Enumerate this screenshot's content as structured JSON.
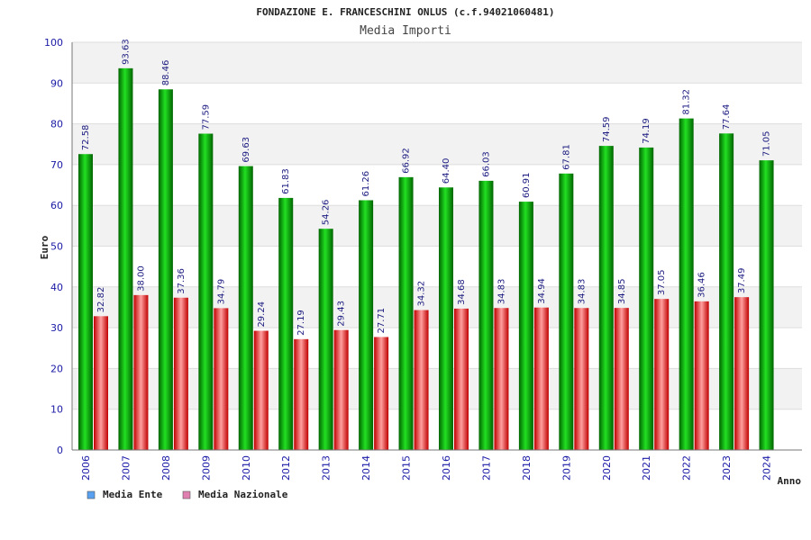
{
  "chart_data": {
    "type": "bar",
    "title": "FONDAZIONE E. FRANCESCHINI ONLUS (c.f.94021060481)",
    "subtitle": "Media Importi",
    "xlabel": "Anno",
    "ylabel": "Euro",
    "ylim": [
      0,
      100
    ],
    "yticks": [
      0,
      10,
      20,
      30,
      40,
      50,
      60,
      70,
      80,
      90,
      100
    ],
    "grid": true,
    "legend_position": "bottom-left",
    "categories": [
      "2006",
      "2007",
      "2008",
      "2009",
      "2010",
      "2012",
      "2013",
      "2014",
      "2015",
      "2016",
      "2017",
      "2018",
      "2019",
      "2020",
      "2021",
      "2022",
      "2023",
      "2024"
    ],
    "series": [
      {
        "name": "Media Ente",
        "color": "#00b400",
        "legend_color": "#5aa0f0",
        "values": [
          72.58,
          93.63,
          88.46,
          77.59,
          69.63,
          61.83,
          54.26,
          61.26,
          66.92,
          64.4,
          66.03,
          60.91,
          67.81,
          74.59,
          74.19,
          81.32,
          77.64,
          71.05
        ],
        "labels": [
          "72.58",
          "93.63",
          "88.46",
          "77.59",
          "69.63",
          "61.83",
          "54.26",
          "61.26",
          "66.92",
          "64.40",
          "66.03",
          "60.91",
          "67.81",
          "74.59",
          "74.19",
          "81.32",
          "77.64",
          "71.05"
        ]
      },
      {
        "name": "Media Nazionale",
        "color": "#e01818",
        "legend_color": "#e080b0",
        "values": [
          32.82,
          38.0,
          37.36,
          34.79,
          29.24,
          27.19,
          29.43,
          27.71,
          34.32,
          34.68,
          34.83,
          34.94,
          34.83,
          34.85,
          37.05,
          36.46,
          37.49,
          null
        ],
        "labels": [
          "32.82",
          "38.00",
          "37.36",
          "34.79",
          "29.24",
          "27.19",
          "29.43",
          "27.71",
          "34.32",
          "34.68",
          "34.83",
          "34.94",
          "34.83",
          "34.85",
          "37.05",
          "36.46",
          "37.49",
          null
        ]
      }
    ]
  }
}
